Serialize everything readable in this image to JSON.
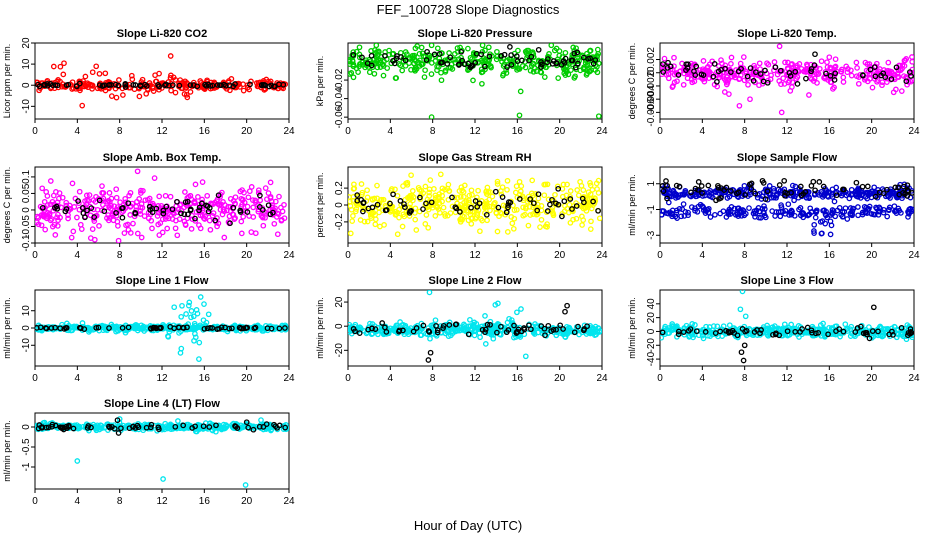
{
  "figure": {
    "title": "FEF_100728  Slope Diagnostics",
    "xlabel": "Hour of Day (UTC)"
  },
  "chart_data": [
    {
      "type": "scatter",
      "title": "Slope Li-820 CO2",
      "ylabel": "Licor ppm per min.",
      "color": "#ff0000",
      "xlim": [
        0,
        24
      ],
      "xticks": [
        0,
        4,
        8,
        12,
        16,
        20,
        24
      ],
      "ylim": [
        -16,
        20
      ],
      "yticks": [
        -10,
        0,
        10,
        20
      ],
      "series": [
        {
          "color": "#ff0000",
          "pattern": "noise",
          "x_range": [
            0.1,
            23.9
          ],
          "n": 280,
          "center": 0,
          "spread": 1.2,
          "sparse_spread": 6,
          "sparse_frac": 0.25,
          "sparse_window": [
            1,
            15
          ]
        },
        {
          "color": "#000000",
          "pattern": "noise",
          "x_range": [
            0.1,
            23.9
          ],
          "n": 70,
          "center": 0,
          "spread": 0.3
        }
      ]
    },
    {
      "type": "scatter",
      "title": "Slope Li-820 Pressure",
      "ylabel": "kPa per min.",
      "color": "#00cc00",
      "xlim": [
        0,
        24
      ],
      "xticks": [
        0,
        4,
        8,
        12,
        16,
        20,
        24
      ],
      "ylim": [
        -0.062,
        0.02
      ],
      "yticks": [
        -0.06,
        -0.04,
        -0.02
      ],
      "series": [
        {
          "color": "#00cc00",
          "pattern": "noise",
          "x_range": [
            0.1,
            23.9
          ],
          "n": 380,
          "center": 0,
          "spread": 0.008,
          "outliers": [
            [
              7.9,
              -0.06
            ],
            [
              16.2,
              -0.058
            ],
            [
              23.7,
              -0.059
            ]
          ]
        },
        {
          "color": "#000000",
          "pattern": "noise",
          "x_range": [
            0.1,
            23.9
          ],
          "n": 70,
          "center": 0.002,
          "spread": 0.005
        }
      ]
    },
    {
      "type": "scatter",
      "title": "Slope Li-820 Temp.",
      "ylabel": "degrees C per min.",
      "color": "#ff00ff",
      "xlim": [
        0,
        24
      ],
      "xticks": [
        0,
        4,
        8,
        12,
        16,
        20,
        24
      ],
      "ylim": [
        -0.007,
        0.0045
      ],
      "yticks": [
        -0.006,
        -0.004,
        -0.002,
        0.0,
        0.002
      ],
      "series": [
        {
          "color": "#ff00ff",
          "pattern": "noise",
          "x_range": [
            0.1,
            23.9
          ],
          "n": 360,
          "center": 0,
          "spread": 0.001,
          "outliers": [
            [
              11.3,
              0.004
            ],
            [
              11.5,
              -0.006
            ],
            [
              8.5,
              -0.004
            ],
            [
              7.5,
              -0.005
            ]
          ]
        },
        {
          "color": "#000000",
          "pattern": "noise",
          "x_range": [
            0.1,
            23.9
          ],
          "n": 60,
          "center": 0,
          "spread": 0.0008
        }
      ]
    },
    {
      "type": "scatter",
      "title": "Slope Amb. Box Temp.",
      "ylabel": "degrees C per min.",
      "color": "#ff00ff",
      "xlim": [
        0,
        24
      ],
      "xticks": [
        0,
        4,
        8,
        12,
        16,
        20,
        24
      ],
      "ylim": [
        -0.1,
        0.13
      ],
      "yticks": [
        -0.1,
        -0.05,
        0.0,
        0.05,
        0.1
      ],
      "series": [
        {
          "color": "#ff00ff",
          "pattern": "noise",
          "x_range": [
            0.1,
            23.9
          ],
          "n": 400,
          "center": 0,
          "spread": 0.035
        },
        {
          "color": "#000000",
          "pattern": "noise",
          "x_range": [
            0.1,
            23.9
          ],
          "n": 60,
          "center": 0,
          "spread": 0.015
        }
      ]
    },
    {
      "type": "scatter",
      "title": "Slope Gas Stream RH",
      "ylabel": "percent per min.",
      "color": "#ffff00",
      "xlim": [
        0,
        24
      ],
      "xticks": [
        0,
        4,
        8,
        12,
        16,
        20,
        24
      ],
      "ylim": [
        -0.45,
        0.45
      ],
      "yticks": [
        -0.2,
        0.0,
        0.2
      ],
      "series": [
        {
          "color": "#ffff00",
          "pattern": "noise",
          "x_range": [
            0.1,
            23.9
          ],
          "n": 420,
          "center": 0,
          "spread": 0.13
        },
        {
          "color": "#000000",
          "pattern": "noise",
          "x_range": [
            0.1,
            23.9
          ],
          "n": 60,
          "center": 0,
          "spread": 0.08
        }
      ]
    },
    {
      "type": "scatter",
      "title": "Slope Sample Flow",
      "ylabel": "ml/min per min.",
      "color": "#0000cc",
      "xlim": [
        0,
        24
      ],
      "xticks": [
        0,
        4,
        8,
        12,
        16,
        20,
        24
      ],
      "ylim": [
        -3.6,
        2.3
      ],
      "yticks": [
        -3,
        -1,
        1
      ],
      "series": [
        {
          "color": "#0000cc",
          "pattern": "band",
          "x_range": [
            0.1,
            23.9
          ],
          "n": 280,
          "center": 0.3,
          "spread": 0.25
        },
        {
          "color": "#0000cc",
          "pattern": "band",
          "x_range": [
            0.1,
            23.9
          ],
          "n": 200,
          "center": -1.2,
          "spread": 0.25
        },
        {
          "color": "#0000cc",
          "pattern": "noise",
          "x_range": [
            14.5,
            16.5
          ],
          "n": 12,
          "center": -2.4,
          "spread": 0.6
        },
        {
          "color": "#000000",
          "pattern": "noise",
          "x_range": [
            0.1,
            23.9
          ],
          "n": 70,
          "center": 0.5,
          "spread": 0.35
        }
      ]
    },
    {
      "type": "scatter",
      "title": "Slope Line 1 Flow",
      "ylabel": "ml/min per min.",
      "color": "#00e5ee",
      "xlim": [
        0,
        24
      ],
      "xticks": [
        0,
        4,
        8,
        12,
        16,
        20,
        24
      ],
      "ylim": [
        -22,
        22
      ],
      "yticks": [
        -10,
        0,
        10
      ],
      "series": [
        {
          "color": "#00e5ee",
          "pattern": "noise",
          "x_range": [
            0.1,
            23.9
          ],
          "n": 360,
          "center": 0,
          "spread": 0.8
        },
        {
          "color": "#00e5ee",
          "pattern": "noise",
          "x_range": [
            12.5,
            16.5
          ],
          "n": 30,
          "center": 0,
          "spread": 9
        },
        {
          "color": "#000000",
          "pattern": "noise",
          "x_range": [
            0.1,
            23.9
          ],
          "n": 60,
          "center": 0,
          "spread": 0.3
        }
      ]
    },
    {
      "type": "scatter",
      "title": "Slope Line 2 Flow",
      "ylabel": "ml/min per min.",
      "color": "#00e5ee",
      "xlim": [
        0,
        24
      ],
      "xticks": [
        0,
        4,
        8,
        12,
        16,
        20,
        24
      ],
      "ylim": [
        -33,
        30
      ],
      "yticks": [
        -20,
        0,
        20
      ],
      "series": [
        {
          "color": "#00e5ee",
          "pattern": "noise",
          "x_range": [
            0.1,
            23.9
          ],
          "n": 380,
          "center": -3,
          "spread": 2.5
        },
        {
          "color": "#00e5ee",
          "pattern": "noise",
          "x_range": [
            11.5,
            16.5
          ],
          "n": 25,
          "center": 0,
          "spread": 8,
          "outliers": [
            [
              7.7,
              28
            ],
            [
              16.8,
              -25
            ]
          ]
        },
        {
          "color": "#000000",
          "pattern": "noise",
          "x_range": [
            0.1,
            23.9
          ],
          "n": 60,
          "center": -2,
          "spread": 2,
          "outliers": [
            [
              7.6,
              -28
            ],
            [
              7.8,
              -22
            ],
            [
              20.5,
              12
            ],
            [
              20.7,
              17
            ]
          ]
        }
      ]
    },
    {
      "type": "scatter",
      "title": "Slope Line 3 Flow",
      "ylabel": "ml/min per min.",
      "color": "#00e5ee",
      "xlim": [
        0,
        24
      ],
      "xticks": [
        0,
        4,
        8,
        12,
        16,
        20,
        24
      ],
      "ylim": [
        -50,
        60
      ],
      "yticks": [
        -40,
        -20,
        0,
        20,
        40
      ],
      "series": [
        {
          "color": "#00e5ee",
          "pattern": "noise",
          "x_range": [
            0.1,
            23.9
          ],
          "n": 380,
          "center": 0,
          "spread": 4,
          "outliers": [
            [
              7.8,
              58
            ],
            [
              7.6,
              32
            ],
            [
              8.1,
              22
            ]
          ]
        },
        {
          "color": "#000000",
          "pattern": "noise",
          "x_range": [
            0.1,
            23.9
          ],
          "n": 60,
          "center": 0,
          "spread": 3,
          "outliers": [
            [
              7.7,
              -30
            ],
            [
              7.9,
              -42
            ],
            [
              8.0,
              -20
            ],
            [
              20.2,
              35
            ],
            [
              19.8,
              -10
            ]
          ]
        }
      ]
    },
    {
      "type": "scatter",
      "title": "Slope Line 4 (LT) Flow",
      "ylabel": "ml/min per min.",
      "color": "#00e5ee",
      "xlim": [
        0,
        24
      ],
      "xticks": [
        0,
        4,
        8,
        12,
        16,
        20,
        24
      ],
      "ylim": [
        -1.55,
        0.35
      ],
      "yticks": [
        -1.0,
        -0.5,
        0.0
      ],
      "series": [
        {
          "color": "#00e5ee",
          "pattern": "noise",
          "x_range": [
            0.1,
            23.9
          ],
          "n": 380,
          "center": 0,
          "spread": 0.04,
          "outliers": [
            [
              4.0,
              -0.85
            ],
            [
              12.1,
              -1.3
            ],
            [
              19.9,
              -1.45
            ],
            [
              8.0,
              0.2
            ],
            [
              13.5,
              0.15
            ]
          ]
        },
        {
          "color": "#000000",
          "pattern": "noise",
          "x_range": [
            0.1,
            23.9
          ],
          "n": 60,
          "center": 0,
          "spread": 0.03,
          "outliers": [
            [
              7.9,
              -0.15
            ],
            [
              7.8,
              0.17
            ],
            [
              20.0,
              0.12
            ]
          ]
        }
      ]
    }
  ]
}
